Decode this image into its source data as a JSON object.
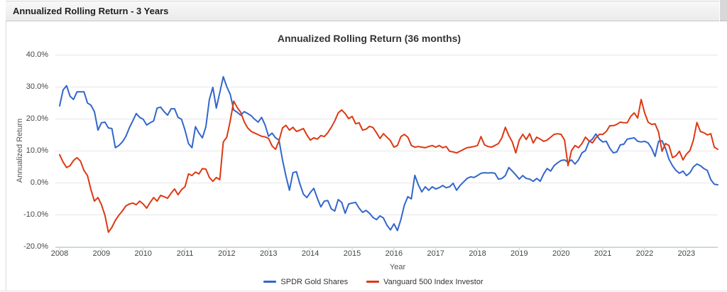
{
  "panel": {
    "title": "Annualized Rolling Return - 3 Years"
  },
  "chart": {
    "title": "Annualized Rolling Return (36 months)",
    "y_axis": {
      "title": "Annualized Return",
      "tick_labels": [
        "40.0%",
        "30.0%",
        "20.0%",
        "10.0%",
        "0.0%",
        "-10.0%",
        "-20.0%"
      ],
      "tick_values": [
        40,
        30,
        20,
        10,
        0,
        -10,
        -20
      ]
    },
    "x_axis": {
      "title": "Year",
      "tick_labels": [
        "2008",
        "2009",
        "2010",
        "2011",
        "2012",
        "2013",
        "2014",
        "2015",
        "2016",
        "2017",
        "2018",
        "2019",
        "2020",
        "2021",
        "2022",
        "2023"
      ]
    },
    "legend": [
      {
        "label": "SPDR Gold Shares",
        "color": "#3366cc"
      },
      {
        "label": "Vanguard 500 Index Investor",
        "color": "#dc3912"
      }
    ],
    "colors": {
      "gridline": "#e7e7e7",
      "bottom_gridline": "#d7e0ea",
      "axis_line": "#cfcfcf",
      "tick_text": "#444444",
      "title_text": "#333333"
    }
  },
  "chart_data": {
    "type": "line",
    "title": "Annualized Rolling Return (36 months)",
    "xlabel": "Year",
    "ylabel": "Annualized Return",
    "x_start": "2008-01",
    "x_end": "2023-10",
    "frequency": "monthly",
    "ylim": [
      -20,
      40
    ],
    "grid": "horizontal",
    "legend_position": "bottom",
    "x_tick_years": [
      2008,
      2009,
      2010,
      2011,
      2012,
      2013,
      2014,
      2015,
      2016,
      2017,
      2018,
      2019,
      2020,
      2021,
      2022,
      2023
    ],
    "series": [
      {
        "id": "spdr-gold-shares",
        "name": "SPDR Gold Shares",
        "color": "#3366cc",
        "values": [
          24.0,
          29.0,
          30.3,
          27.0,
          26.0,
          28.4,
          28.4,
          28.4,
          24.9,
          24.2,
          22.2,
          16.4,
          18.7,
          18.9,
          17.1,
          16.9,
          10.9,
          11.6,
          12.7,
          14.4,
          17.1,
          19.3,
          21.6,
          20.4,
          19.8,
          18.0,
          18.7,
          19.3,
          23.3,
          23.6,
          22.2,
          21.1,
          23.1,
          23.1,
          20.4,
          19.8,
          16.4,
          12.2,
          10.9,
          17.5,
          15.5,
          14.0,
          17.5,
          26.0,
          29.8,
          23.3,
          28.2,
          33.1,
          30.0,
          27.6,
          22.7,
          22.0,
          21.1,
          22.2,
          21.6,
          20.9,
          19.8,
          18.9,
          20.4,
          18.0,
          14.5,
          15.5,
          14.0,
          13.3,
          7.1,
          2.0,
          -2.4,
          3.1,
          3.4,
          -0.4,
          -3.6,
          -4.7,
          -3.1,
          -1.8,
          -4.9,
          -7.6,
          -5.8,
          -5.6,
          -8.2,
          -8.9,
          -5.3,
          -6.2,
          -9.6,
          -6.7,
          -6.4,
          -6.2,
          -8.0,
          -9.3,
          -8.7,
          -9.6,
          -10.9,
          -11.6,
          -10.4,
          -11.1,
          -13.3,
          -14.8,
          -12.9,
          -15.0,
          -11.5,
          -7.0,
          -4.4,
          -5.1,
          2.3,
          -0.7,
          -2.9,
          -1.3,
          -2.4,
          -1.3,
          -2.0,
          -1.6,
          -0.9,
          -1.6,
          -1.3,
          -0.2,
          -2.4,
          -0.9,
          0.2,
          1.3,
          1.8,
          1.6,
          2.2,
          2.9,
          3.1,
          3.0,
          3.1,
          2.9,
          1.1,
          1.3,
          2.2,
          4.7,
          3.6,
          2.4,
          1.1,
          2.2,
          1.3,
          1.1,
          0.4,
          1.3,
          0.4,
          2.7,
          4.4,
          3.6,
          5.3,
          6.2,
          6.9,
          7.1,
          6.4,
          7.1,
          5.8,
          7.1,
          9.3,
          10.0,
          12.7,
          13.6,
          15.2,
          13.6,
          12.7,
          12.9,
          10.7,
          9.3,
          9.6,
          11.8,
          12.0,
          13.6,
          13.8,
          14.0,
          12.9,
          12.7,
          12.9,
          12.4,
          10.7,
          8.2,
          12.9,
          13.1,
          10.7,
          7.3,
          5.3,
          3.8,
          2.9,
          3.6,
          2.2,
          3.1,
          4.9,
          5.8,
          5.3,
          4.4,
          3.8,
          0.9,
          -0.5,
          -0.7
        ]
      },
      {
        "id": "vanguard-500-index-investor",
        "name": "Vanguard 500 Index Investor",
        "color": "#dc3912",
        "values": [
          8.7,
          6.4,
          4.7,
          5.3,
          6.9,
          7.8,
          6.7,
          3.8,
          2.2,
          -2.2,
          -5.8,
          -4.7,
          -6.9,
          -10.2,
          -15.5,
          -14.0,
          -11.8,
          -10.2,
          -8.9,
          -7.3,
          -6.7,
          -6.4,
          -6.9,
          -5.8,
          -6.7,
          -8.0,
          -6.2,
          -4.7,
          -5.8,
          -4.0,
          -4.4,
          -4.9,
          -3.3,
          -2.0,
          -3.8,
          -2.2,
          -1.3,
          2.7,
          2.2,
          3.3,
          2.7,
          4.4,
          4.2,
          1.6,
          0.4,
          1.6,
          0.9,
          12.7,
          14.2,
          19.3,
          25.5,
          23.5,
          22.0,
          19.0,
          17.1,
          16.0,
          15.5,
          15.0,
          14.5,
          14.3,
          13.8,
          11.5,
          10.4,
          13.1,
          17.1,
          17.9,
          16.4,
          17.3,
          16.0,
          16.4,
          16.9,
          14.9,
          13.3,
          14.0,
          13.6,
          14.7,
          14.4,
          15.6,
          17.3,
          19.3,
          21.8,
          22.7,
          21.6,
          20.0,
          20.7,
          18.4,
          18.7,
          16.4,
          16.7,
          17.6,
          17.2,
          15.6,
          13.8,
          15.3,
          14.2,
          13.1,
          11.1,
          11.6,
          14.4,
          15.1,
          14.2,
          11.6,
          11.1,
          11.3,
          11.1,
          10.9,
          11.3,
          11.6,
          11.1,
          11.6,
          10.9,
          11.3,
          9.8,
          9.6,
          9.3,
          9.8,
          10.4,
          10.9,
          11.1,
          11.3,
          11.6,
          14.4,
          11.8,
          11.3,
          11.1,
          11.6,
          12.2,
          14.0,
          17.3,
          14.7,
          12.7,
          9.3,
          13.3,
          15.1,
          13.5,
          15.3,
          12.4,
          14.2,
          13.6,
          12.9,
          13.3,
          14.2,
          15.1,
          15.3,
          15.1,
          13.3,
          5.3,
          10.0,
          11.6,
          10.9,
          12.2,
          14.2,
          13.1,
          12.4,
          14.0,
          15.1,
          15.1,
          16.0,
          17.8,
          17.8,
          18.2,
          18.9,
          18.7,
          18.7,
          20.7,
          21.8,
          20.2,
          26.0,
          21.8,
          18.9,
          18.2,
          18.4,
          15.8,
          9.8,
          12.2,
          11.6,
          7.8,
          8.4,
          9.8,
          7.1,
          8.9,
          10.0,
          13.3,
          18.8,
          16.0,
          15.6,
          14.9,
          15.3,
          11.1,
          10.4
        ]
      }
    ]
  }
}
